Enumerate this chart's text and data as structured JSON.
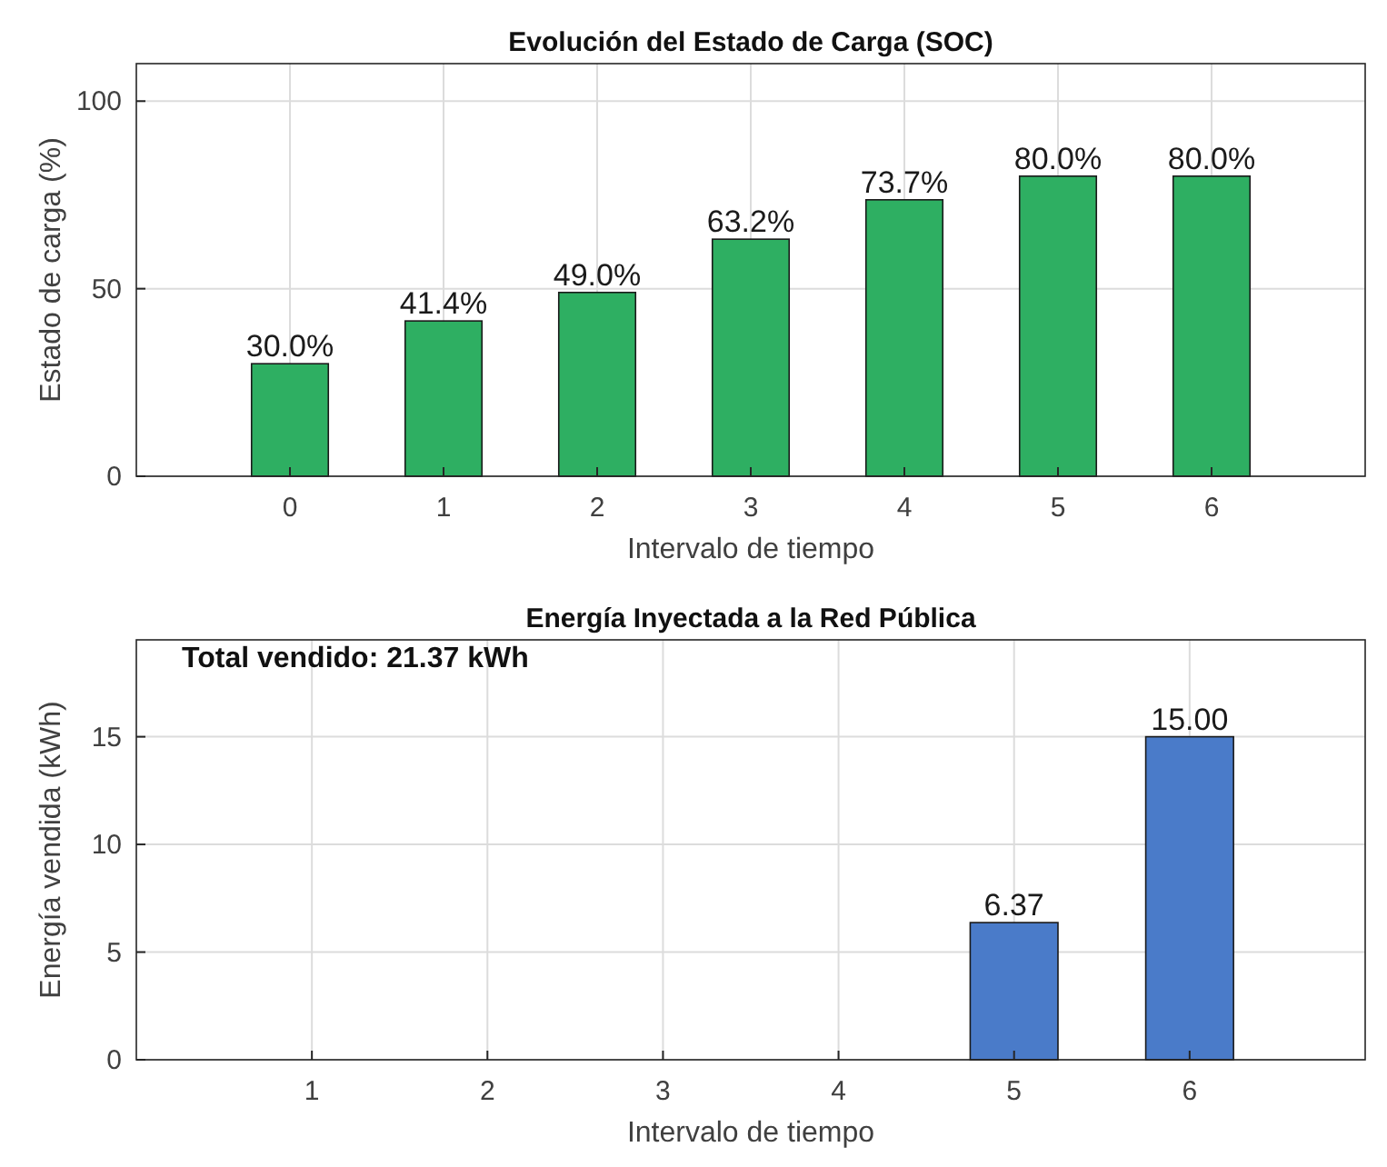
{
  "chart_data": [
    {
      "type": "bar",
      "title": "Evolución del Estado de Carga (SOC)",
      "xlabel": "Intervalo de tiempo",
      "ylabel": "Estado de carga (%)",
      "x": [
        0,
        1,
        2,
        3,
        4,
        5,
        6
      ],
      "values": [
        30.0,
        41.4,
        49.0,
        63.2,
        73.7,
        80.0,
        80.0
      ],
      "value_labels": [
        "30.0%",
        "41.4%",
        "49.0%",
        "63.2%",
        "73.7%",
        "80.0%",
        "80.0%"
      ],
      "color": "#2eaf62",
      "xlim": [
        -1,
        7
      ],
      "ylim": [
        0,
        110
      ],
      "xticks": [
        0,
        1,
        2,
        3,
        4,
        5,
        6
      ],
      "yticks": [
        0,
        50,
        100
      ],
      "grid": true
    },
    {
      "type": "bar",
      "title": "Energía Inyectada a la Red Pública",
      "xlabel": "Intervalo de tiempo",
      "ylabel": "Energía vendida (kWh)",
      "x": [
        1,
        2,
        3,
        4,
        5,
        6
      ],
      "values": [
        0,
        0,
        0,
        0,
        6.37,
        15.0
      ],
      "value_labels": [
        null,
        null,
        null,
        null,
        "6.37",
        "15.00"
      ],
      "color": "#4a7bc9",
      "xlim": [
        0,
        7
      ],
      "ylim": [
        0,
        19.5
      ],
      "xticks": [
        1,
        2,
        3,
        4,
        5,
        6
      ],
      "yticks": [
        0,
        5,
        10,
        15
      ],
      "grid": true,
      "annotations": [
        "Total vendido: 21.37 kWh"
      ]
    }
  ]
}
